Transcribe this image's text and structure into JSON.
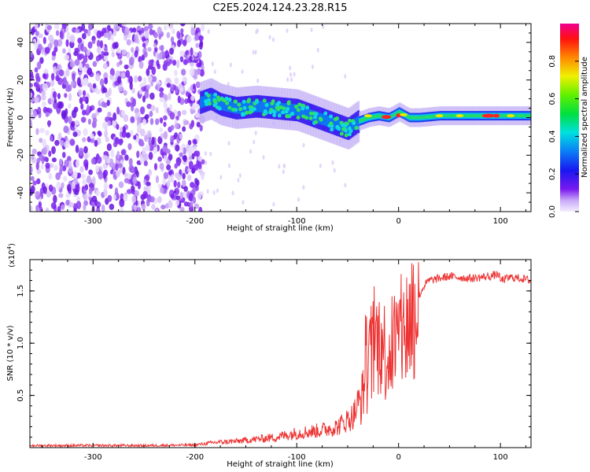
{
  "title": "C2E5.2024.124.23.28.R15",
  "chart_data": [
    {
      "type": "heatmap",
      "ylabel": "Frequency (Hz)",
      "xlabel": "Height of straight line (km)",
      "xlim": [
        -362,
        130
      ],
      "ylim": [
        -50,
        50
      ],
      "xticks": [
        -300,
        -200,
        -100,
        0,
        100
      ],
      "yticks": [
        -40,
        -20,
        0,
        20,
        40
      ],
      "colorbar": {
        "label": "Normalized spectral amplitude",
        "range": [
          0,
          1
        ],
        "ticks": [
          "0.0",
          "0.2",
          "0.4",
          "0.6",
          "0.8"
        ],
        "tick_values": [
          0.0,
          0.2,
          0.4,
          0.6,
          0.8
        ]
      },
      "ridge": {
        "x": [
          -195,
          -185,
          -175,
          -160,
          -140,
          -120,
          -100,
          -80,
          -60,
          -50,
          -40,
          -30,
          -20,
          -10,
          0,
          10,
          20,
          40,
          60,
          80,
          100,
          130
        ],
        "frequency": [
          8,
          10,
          7,
          5,
          6,
          5,
          4,
          0,
          -4,
          -6,
          -2,
          0,
          1,
          0,
          3,
          0,
          0,
          1,
          1,
          1,
          1,
          1
        ]
      }
    },
    {
      "type": "line",
      "ylabel": "SNR (10 * v/v)",
      "xlabel": "Height of straight line (km)",
      "scale_label": "(x10",
      "scale_exp": "4",
      "scale_close": ")",
      "xlim": [
        -362,
        130
      ],
      "ylim": [
        0,
        1.8
      ],
      "xticks": [
        -300,
        -200,
        -100,
        0,
        100
      ],
      "yticks": [
        0.5,
        1.0,
        1.5
      ],
      "ytick_labels": [
        "0.5",
        "1.0",
        "1.5"
      ],
      "series": [
        {
          "color": "#ee3333",
          "x": [
            -362,
            -300,
            -250,
            -200,
            -180,
            -160,
            -140,
            -120,
            -100,
            -80,
            -60,
            -45,
            -35,
            -30,
            -25,
            -20,
            -15,
            -10,
            -5,
            0,
            5,
            10,
            15,
            20,
            25,
            30,
            40,
            50,
            60,
            70,
            80,
            90,
            98,
            100,
            110,
            120,
            130
          ],
          "y": [
            0.02,
            0.02,
            0.02,
            0.025,
            0.05,
            0.06,
            0.08,
            0.1,
            0.14,
            0.16,
            0.2,
            0.3,
            0.5,
            0.75,
            0.95,
            1.05,
            0.95,
            0.9,
            1.0,
            1.05,
            1.1,
            1.2,
            1.35,
            1.45,
            1.55,
            1.6,
            1.62,
            1.64,
            1.63,
            1.62,
            1.63,
            1.64,
            1.66,
            1.6,
            1.63,
            1.62,
            1.6
          ]
        }
      ]
    }
  ]
}
